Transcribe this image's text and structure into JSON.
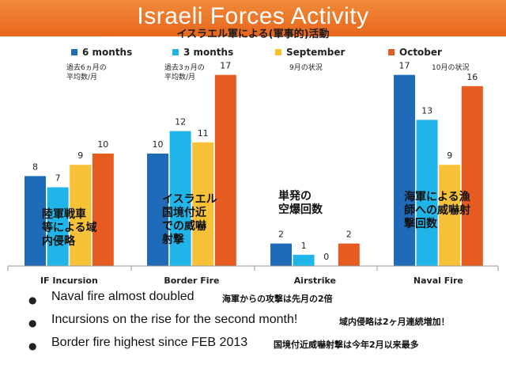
{
  "header": {
    "title": "Israeli Forces Activity",
    "subtitle": "イスラエル軍による(軍事的)活動"
  },
  "chart_data": {
    "type": "bar",
    "categories": [
      "IF Incursion",
      "Border Fire",
      "Airstrike",
      "Naval Fire"
    ],
    "series": [
      {
        "name": "6 months",
        "values": [
          8,
          10,
          2,
          17
        ]
      },
      {
        "name": "3 months",
        "values": [
          7,
          12,
          1,
          13
        ]
      },
      {
        "name": "September",
        "values": [
          9,
          11,
          0,
          9
        ]
      },
      {
        "name": "October",
        "values": [
          10,
          17,
          2,
          16
        ]
      }
    ],
    "ylim": [
      0,
      19
    ],
    "grid": false,
    "legend": "top",
    "colors": [
      "#1f6bb8",
      "#1fb5e8",
      "#f7c238",
      "#e65c20"
    ]
  },
  "notes": {
    "six_months": "過去6ヵ月の\n平均数/月",
    "three_months": "過去3ヵ月の\n平均数/月",
    "september": "9月の状況",
    "october": "10月の状況"
  },
  "overlays": {
    "incursion": "陸軍戦車\n等による域\n内侵略",
    "border": "イスラエル\n国境付近\nでの威嚇\n射撃",
    "airstrike": "単発の\n空爆回数",
    "naval": "海軍による漁\n師への威嚇射\n撃回数"
  },
  "bullets": [
    {
      "en": "Naval fire almost doubled",
      "jp": "海軍からの攻撃は先月の2倍"
    },
    {
      "en": "Incursions on the rise for the second month!",
      "jp": "域内侵略は2ヶ月連続増加！"
    },
    {
      "en": "Border fire highest since FEB 2013",
      "jp": "国境付近威嚇射撃は今年2月以来最多"
    }
  ]
}
